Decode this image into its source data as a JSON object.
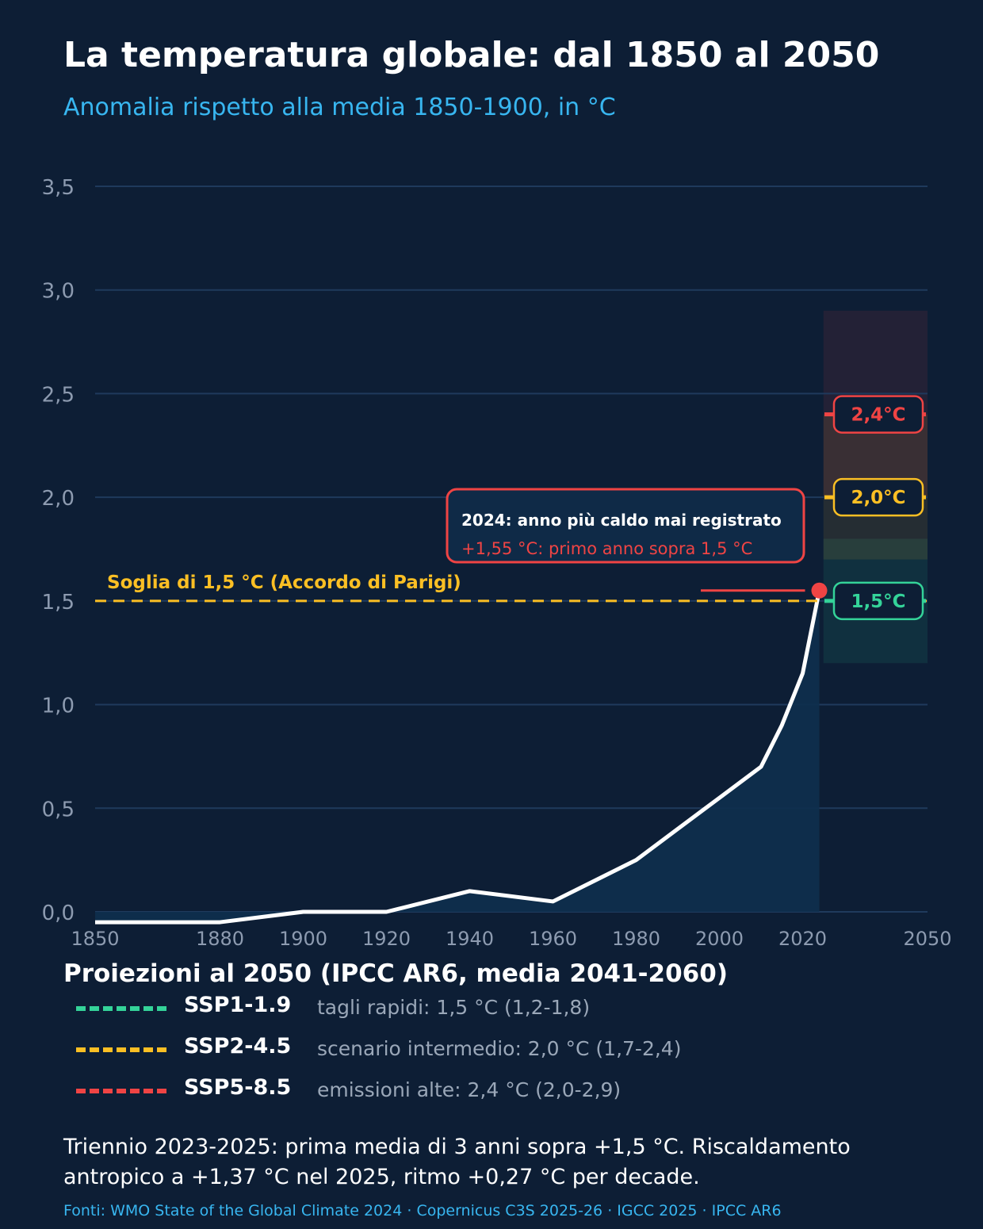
{
  "title": "La temperatura globale: dal 1850 al 2050",
  "subtitle": "Anomalia rispetto alla media 1850-1900, in °C",
  "chart_data": {
    "type": "line",
    "title": "La temperatura globale: dal 1850 al 2050",
    "subtitle": "Anomalia rispetto alla media 1850-1900, in °C",
    "xlim": [
      1850,
      2050
    ],
    "ylim": [
      0,
      3.5
    ],
    "x_ticks": [
      1850,
      1880,
      1900,
      1920,
      1940,
      1960,
      1980,
      2000,
      2020,
      2050
    ],
    "y_ticks": [
      0,
      0.5,
      1,
      1.5,
      2,
      2.5,
      3,
      3.5
    ],
    "y_tick_labels": [
      "0,0",
      "0,5",
      "1,0",
      "1,5",
      "2,0",
      "2,5",
      "3,0",
      "3,5"
    ],
    "grid": "horizontal",
    "series": [
      {
        "x": [
          1850,
          1880,
          1900,
          1920,
          1940,
          1960,
          1980,
          1990,
          2000,
          2010,
          2015,
          2020,
          2024
        ],
        "y": [
          -0.05,
          -0.05,
          0.0,
          0.0,
          0.1,
          0.05,
          0.25,
          0.4,
          0.55,
          0.7,
          0.9,
          1.15,
          1.55
        ],
        "color": "#ffffff",
        "fill": "#0f2e4d"
      }
    ],
    "highlight_point": {
      "x": 2024,
      "y": 1.55,
      "color": "#ef4444"
    },
    "threshold": {
      "y": 1.5,
      "label": "Soglia di 1,5 °C (Accordo di Parigi)",
      "color": "#fbbf24"
    },
    "annotation": {
      "title": "2024: anno più caldo mai registrato",
      "text": "+1,55 °C: primo anno sopra 1,5 °C",
      "color": "#ef4444"
    },
    "projection_start": 2025,
    "projections": [
      {
        "name": "SSP1-1.9",
        "value": 1.5,
        "range": [
          1.2,
          1.8
        ],
        "label": "1,5°C",
        "color": "#34d399",
        "desc": "tagli rapidi: 1,5 °C (1,2-1,8)"
      },
      {
        "name": "SSP2-4.5",
        "value": 2.0,
        "range": [
          1.7,
          2.4
        ],
        "label": "2,0°C",
        "color": "#fbbf24",
        "desc": "scenario intermedio: 2,0 °C (1,7-2,4)"
      },
      {
        "name": "SSP5-8.5",
        "value": 2.4,
        "range": [
          2.0,
          2.9
        ],
        "label": "2,4°C",
        "color": "#ef4444",
        "desc": "emissioni alte: 2,4 °C (2,0-2,9)"
      }
    ]
  },
  "legend_title": "Proiezioni al 2050 (IPCC AR6, media 2041-2060)",
  "note": "Triennio 2023-2025: prima media di 3 anni sopra +1,5 °C. Riscaldamento antropico a +1,37 °C nel 2025, ritmo +0,27 °C per decade.",
  "sources": "Fonti: WMO State of the Global Climate 2024 · Copernicus C3S 2025-26 · IGCC 2025 · IPCC AR6"
}
